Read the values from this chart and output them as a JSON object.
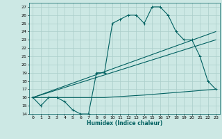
{
  "title": "",
  "xlabel": "Humidex (Indice chaleur)",
  "bg_color": "#cce8e4",
  "grid_color": "#aaceca",
  "line_color": "#006060",
  "xlim": [
    -0.5,
    23.5
  ],
  "ylim": [
    14,
    27.5
  ],
  "xticks": [
    0,
    1,
    2,
    3,
    4,
    5,
    6,
    7,
    8,
    9,
    10,
    11,
    12,
    13,
    14,
    15,
    16,
    17,
    18,
    19,
    20,
    21,
    22,
    23
  ],
  "yticks": [
    14,
    15,
    16,
    17,
    18,
    19,
    20,
    21,
    22,
    23,
    24,
    25,
    26,
    27
  ],
  "series_main": {
    "x": [
      0,
      1,
      2,
      3,
      4,
      5,
      6,
      7,
      8,
      9,
      10,
      11,
      12,
      13,
      14,
      15,
      16,
      17,
      18,
      19,
      20,
      21,
      22,
      23
    ],
    "y": [
      16,
      15,
      16,
      16,
      15.5,
      14.5,
      14,
      14,
      19,
      19,
      25,
      25.5,
      26,
      26,
      25,
      27,
      27,
      26,
      24,
      23,
      23,
      21,
      18,
      17
    ]
  },
  "series_flat": {
    "x": [
      0,
      9,
      14,
      23
    ],
    "y": [
      16,
      16,
      16.3,
      17
    ]
  },
  "series_mid": {
    "x": [
      0,
      23
    ],
    "y": [
      16,
      23
    ]
  },
  "series_high": {
    "x": [
      0,
      23
    ],
    "y": [
      16,
      24
    ]
  }
}
